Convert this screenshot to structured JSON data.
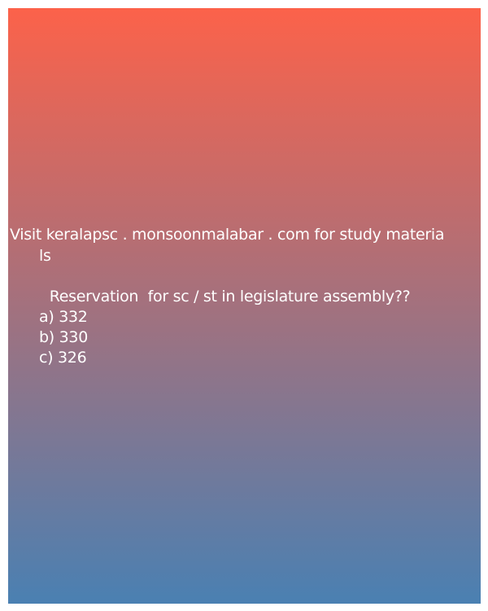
{
  "promo": {
    "line1": "Visit keralapsc . monsoonmalabar . com for study materia",
    "line2": "ls"
  },
  "question": {
    "text": " Reservation  for sc / st in legislature assembly??",
    "options": [
      "a) 332",
      "b) 330",
      "c) 326"
    ]
  },
  "colors": {
    "gradient_top": "#fc624a",
    "gradient_bottom": "#4a80b2",
    "text": "#ffffff"
  }
}
